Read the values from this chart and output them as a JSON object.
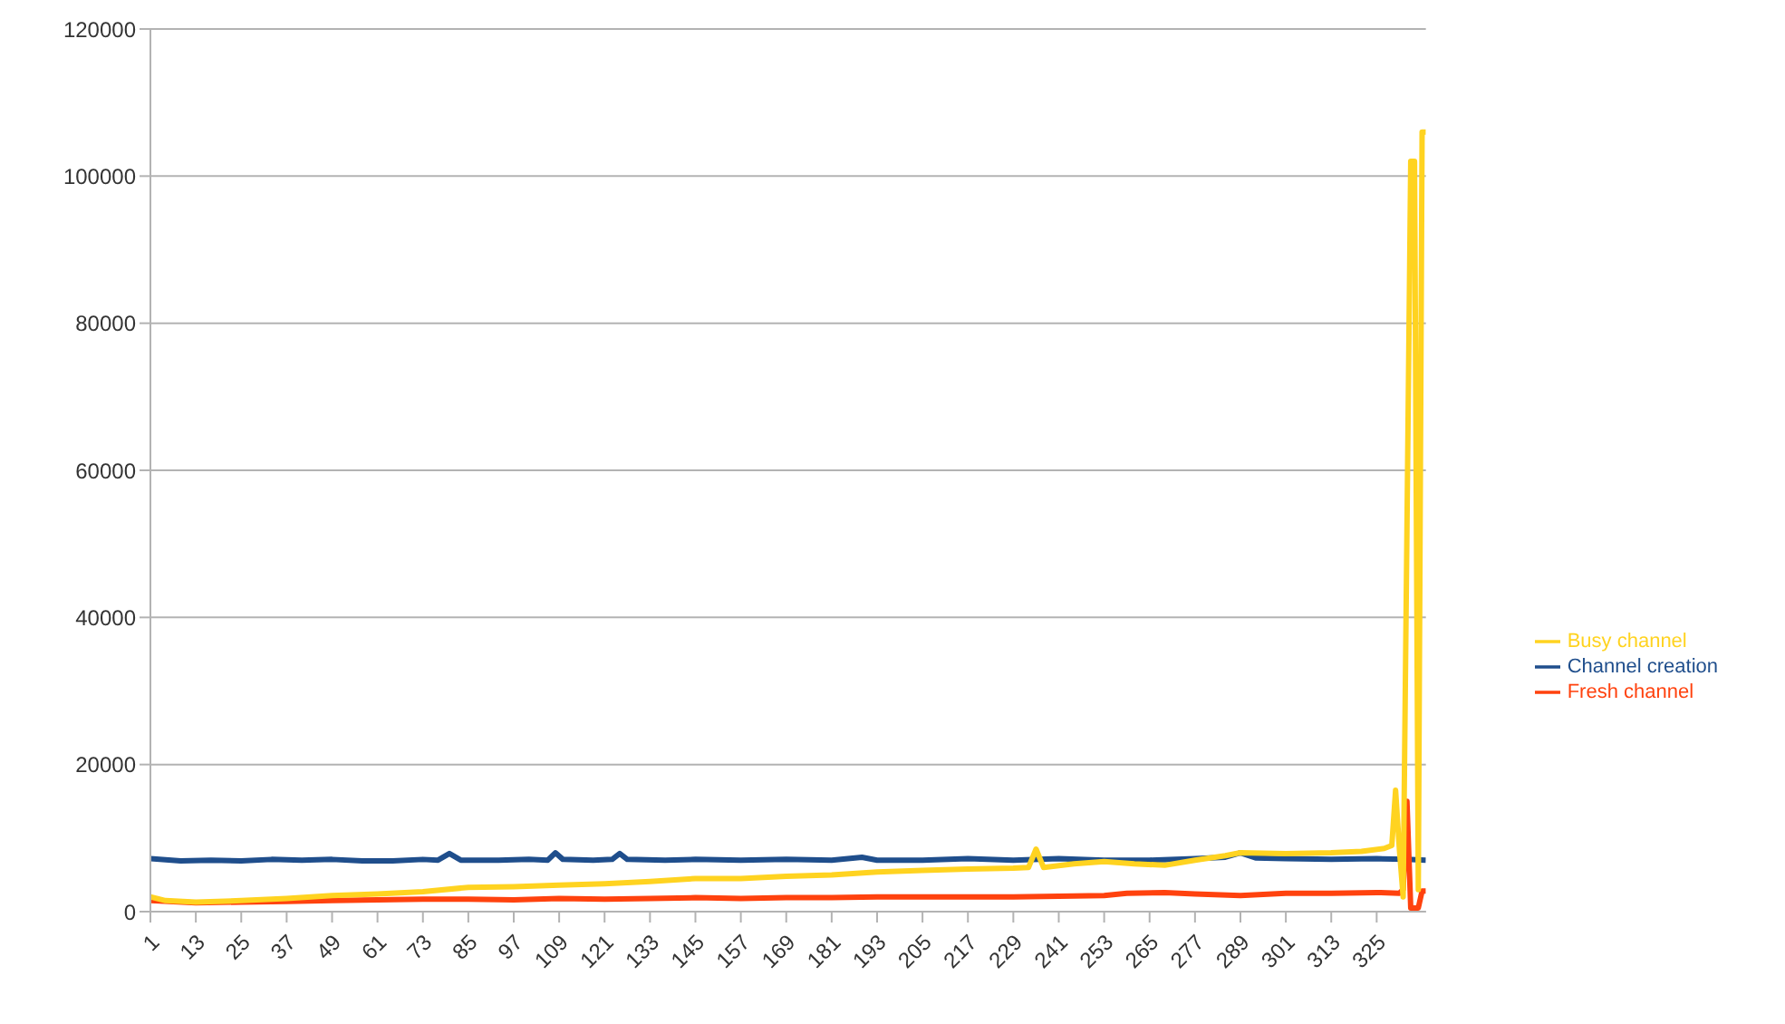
{
  "chart_data": {
    "type": "line",
    "xlim": [
      1,
      338
    ],
    "xticks": [
      1,
      13,
      25,
      37,
      49,
      61,
      73,
      85,
      97,
      109,
      121,
      133,
      145,
      157,
      169,
      181,
      193,
      205,
      217,
      229,
      241,
      253,
      265,
      277,
      289,
      301,
      313,
      325
    ],
    "ylim": [
      0,
      120000
    ],
    "yticks": [
      0,
      20000,
      40000,
      60000,
      80000,
      100000,
      120000
    ],
    "grid": "y",
    "legend": "right",
    "marker": "none",
    "line_style": "solid",
    "series": [
      {
        "name": "Channel creation",
        "color": "#1f4e8c",
        "x": [
          1,
          9,
          17,
          25,
          33,
          41,
          49,
          57,
          65,
          73,
          77,
          80,
          83,
          93,
          101,
          106,
          108,
          110,
          118,
          123,
          125,
          127,
          137,
          145,
          157,
          169,
          181,
          189,
          193,
          205,
          217,
          229,
          241,
          253,
          265,
          277,
          285,
          289,
          293,
          301,
          313,
          325,
          333,
          338
        ],
        "values": [
          7200,
          6900,
          7000,
          6900,
          7100,
          7000,
          7100,
          6900,
          6900,
          7100,
          7000,
          7900,
          7000,
          7000,
          7100,
          7000,
          8000,
          7100,
          7000,
          7100,
          7900,
          7100,
          7000,
          7100,
          7000,
          7100,
          7000,
          7400,
          7000,
          7000,
          7200,
          7000,
          7200,
          7000,
          7000,
          7200,
          7400,
          8000,
          7300,
          7200,
          7100,
          7200,
          7100,
          7000
        ]
      },
      {
        "name": "Fresh channel",
        "color": "#ff420e",
        "x": [
          1,
          13,
          25,
          37,
          49,
          61,
          73,
          85,
          97,
          109,
          121,
          133,
          145,
          157,
          169,
          181,
          193,
          205,
          217,
          229,
          241,
          253,
          259,
          269,
          277,
          289,
          301,
          313,
          325,
          331,
          332,
          333,
          334,
          336,
          337,
          338
        ],
        "values": [
          1500,
          1200,
          1300,
          1400,
          1500,
          1600,
          1700,
          1700,
          1600,
          1800,
          1700,
          1800,
          1900,
          1800,
          1900,
          1900,
          2000,
          2000,
          2000,
          2000,
          2100,
          2200,
          2500,
          2600,
          2400,
          2200,
          2500,
          2500,
          2600,
          2500,
          3000,
          15000,
          500,
          500,
          2800,
          2800
        ]
      },
      {
        "name": "Busy channel",
        "color": "#ffd320",
        "x": [
          1,
          5,
          13,
          25,
          37,
          49,
          61,
          73,
          85,
          97,
          109,
          121,
          133,
          145,
          157,
          169,
          181,
          193,
          205,
          217,
          229,
          233,
          235,
          237,
          245,
          253,
          261,
          269,
          277,
          285,
          289,
          301,
          313,
          321,
          327,
          329,
          330,
          331,
          332,
          334,
          335,
          336,
          337,
          338
        ],
        "values": [
          2000,
          1500,
          1300,
          1500,
          1800,
          2200,
          2400,
          2700,
          3300,
          3400,
          3600,
          3800,
          4100,
          4500,
          4500,
          4800,
          5000,
          5400,
          5600,
          5800,
          5900,
          6000,
          8500,
          6000,
          6500,
          6800,
          6500,
          6300,
          7000,
          7600,
          8000,
          7900,
          8000,
          8200,
          8600,
          9000,
          16500,
          8500,
          2000,
          102000,
          102000,
          3000,
          106000,
          106000
        ]
      }
    ]
  }
}
